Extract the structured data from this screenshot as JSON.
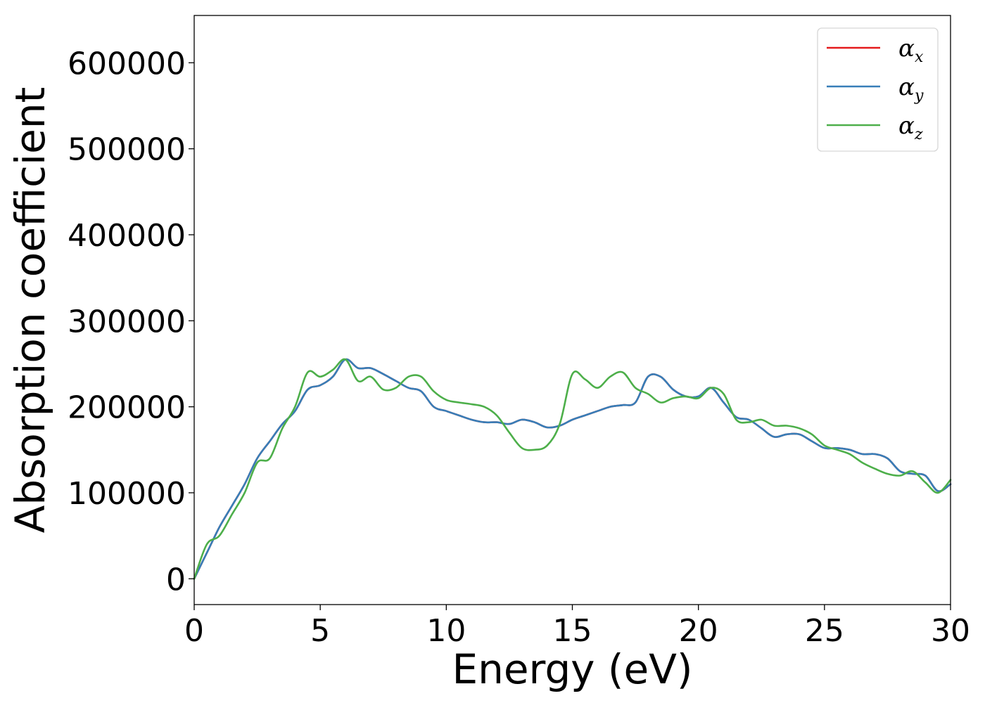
{
  "chart_data": {
    "type": "line",
    "xlabel": "Energy (eV)",
    "ylabel": "Absorption coefficient",
    "xlim": [
      0,
      30
    ],
    "ylim": [
      -30000,
      655000
    ],
    "xticks": [
      0,
      5,
      10,
      15,
      20,
      25,
      30
    ],
    "yticks": [
      0,
      100000,
      200000,
      300000,
      400000,
      500000,
      600000
    ],
    "xtick_labels": [
      "0",
      "5",
      "10",
      "15",
      "20",
      "25",
      "30"
    ],
    "ytick_labels": [
      "0",
      "100000",
      "200000",
      "300000",
      "400000",
      "500000",
      "600000"
    ],
    "grid": false,
    "legend_position": "top-right",
    "series": [
      {
        "name": "α_x",
        "symbol": "α",
        "subscript": "x",
        "color": "#e41a1c",
        "x": [
          0,
          0.5,
          1,
          1.5,
          2,
          2.5,
          3,
          3.5,
          4,
          4.5,
          5,
          5.5,
          6,
          6.5,
          7,
          7.5,
          8,
          8.5,
          9,
          9.5,
          10,
          10.5,
          11,
          11.5,
          12,
          12.5,
          13,
          13.5,
          14,
          14.5,
          15,
          15.5,
          16,
          16.5,
          17,
          17.5,
          18,
          18.5,
          19,
          19.5,
          20,
          20.5,
          21,
          21.5,
          22,
          22.5,
          23,
          23.5,
          24,
          24.5,
          25,
          25.5,
          26,
          26.5,
          27,
          27.5,
          28,
          28.5,
          29,
          29.5,
          30
        ],
        "y": [
          0,
          30000,
          60000,
          85000,
          110000,
          140000,
          160000,
          180000,
          195000,
          220000,
          225000,
          235000,
          255000,
          245000,
          245000,
          238000,
          230000,
          222000,
          218000,
          200000,
          195000,
          190000,
          185000,
          182000,
          182000,
          180000,
          185000,
          182000,
          176000,
          178000,
          185000,
          190000,
          195000,
          200000,
          202000,
          205000,
          235000,
          235000,
          220000,
          212000,
          212000,
          222000,
          205000,
          188000,
          185000,
          175000,
          165000,
          168000,
          168000,
          160000,
          152000,
          152000,
          150000,
          145000,
          145000,
          140000,
          125000,
          122000,
          120000,
          102000,
          110000
        ]
      },
      {
        "name": "α_y",
        "symbol": "α",
        "subscript": "y",
        "color": "#377eb8",
        "x": [
          0,
          0.5,
          1,
          1.5,
          2,
          2.5,
          3,
          3.5,
          4,
          4.5,
          5,
          5.5,
          6,
          6.5,
          7,
          7.5,
          8,
          8.5,
          9,
          9.5,
          10,
          10.5,
          11,
          11.5,
          12,
          12.5,
          13,
          13.5,
          14,
          14.5,
          15,
          15.5,
          16,
          16.5,
          17,
          17.5,
          18,
          18.5,
          19,
          19.5,
          20,
          20.5,
          21,
          21.5,
          22,
          22.5,
          23,
          23.5,
          24,
          24.5,
          25,
          25.5,
          26,
          26.5,
          27,
          27.5,
          28,
          28.5,
          29,
          29.5,
          30
        ],
        "y": [
          0,
          30000,
          60000,
          85000,
          110000,
          140000,
          160000,
          180000,
          195000,
          220000,
          225000,
          235000,
          255000,
          245000,
          245000,
          238000,
          230000,
          222000,
          218000,
          200000,
          195000,
          190000,
          185000,
          182000,
          182000,
          180000,
          185000,
          182000,
          176000,
          178000,
          185000,
          190000,
          195000,
          200000,
          202000,
          205000,
          235000,
          235000,
          220000,
          212000,
          212000,
          222000,
          205000,
          188000,
          185000,
          175000,
          165000,
          168000,
          168000,
          160000,
          152000,
          152000,
          150000,
          145000,
          145000,
          140000,
          125000,
          122000,
          120000,
          102000,
          110000
        ]
      },
      {
        "name": "α_z",
        "symbol": "α",
        "subscript": "z",
        "color": "#4daf4a",
        "x": [
          0,
          0.5,
          1,
          1.5,
          2,
          2.5,
          3,
          3.5,
          4,
          4.5,
          5,
          5.5,
          6,
          6.5,
          7,
          7.5,
          8,
          8.5,
          9,
          9.5,
          10,
          10.5,
          11,
          11.5,
          12,
          12.5,
          13,
          13.5,
          14,
          14.5,
          15,
          15.5,
          16,
          16.5,
          17,
          17.5,
          18,
          18.5,
          19,
          19.5,
          20,
          20.5,
          21,
          21.5,
          22,
          22.5,
          23,
          23.5,
          24,
          24.5,
          25,
          25.5,
          26,
          26.5,
          27,
          27.5,
          28,
          28.5,
          29,
          29.5,
          30
        ],
        "y": [
          0,
          40000,
          50000,
          75000,
          100000,
          135000,
          140000,
          175000,
          200000,
          240000,
          235000,
          243000,
          255000,
          230000,
          235000,
          220000,
          222000,
          235000,
          235000,
          218000,
          208000,
          205000,
          203000,
          200000,
          190000,
          170000,
          152000,
          150000,
          155000,
          180000,
          238000,
          232000,
          222000,
          235000,
          240000,
          222000,
          215000,
          205000,
          210000,
          212000,
          210000,
          222000,
          215000,
          185000,
          182000,
          185000,
          178000,
          178000,
          175000,
          168000,
          155000,
          150000,
          145000,
          135000,
          128000,
          122000,
          120000,
          125000,
          112000,
          100000,
          115000
        ]
      }
    ]
  }
}
